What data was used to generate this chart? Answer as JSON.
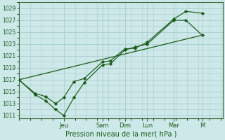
{
  "background_color": "#cce8e8",
  "grid_color": "#aacccc",
  "line_color": "#1a5c1a",
  "marker_color": "#1a5c1a",
  "xlabel": "Pression niveau de la mer( hPa )",
  "ylim": [
    1010.5,
    1030
  ],
  "yticks": [
    1011,
    1013,
    1015,
    1017,
    1019,
    1021,
    1023,
    1025,
    1027,
    1029
  ],
  "day_labels": [
    "Jeu",
    "Sam",
    "Dim",
    "Lun",
    "Mar",
    "M"
  ],
  "day_positions": [
    0.22,
    0.41,
    0.52,
    0.63,
    0.76,
    0.9
  ],
  "xmin": 0.0,
  "xmax": 1.0,
  "line_main_x": [
    0.0,
    0.08,
    0.13,
    0.18,
    0.22,
    0.27,
    0.32,
    0.41,
    0.45,
    0.52,
    0.57,
    0.63,
    0.76,
    0.82,
    0.9
  ],
  "line_main_y": [
    1017,
    1014.5,
    1013.5,
    1012,
    1011,
    1014,
    1016.5,
    1019.5,
    1019.7,
    1022,
    1022.5,
    1023,
    1027,
    1027,
    1024.5
  ],
  "line_upper_x": [
    0.0,
    0.08,
    0.13,
    0.18,
    0.22,
    0.27,
    0.32,
    0.41,
    0.45,
    0.52,
    0.57,
    0.63,
    0.76,
    0.82,
    0.9
  ],
  "line_upper_y": [
    1017,
    1014.7,
    1014.2,
    1013,
    1014,
    1016.7,
    1017.2,
    1020,
    1020.2,
    1022.2,
    1022.3,
    1023.3,
    1027.2,
    1028.5,
    1028.2
  ],
  "line_trend_x": [
    0.0,
    0.9
  ],
  "line_trend_y": [
    1017,
    1024.5
  ]
}
